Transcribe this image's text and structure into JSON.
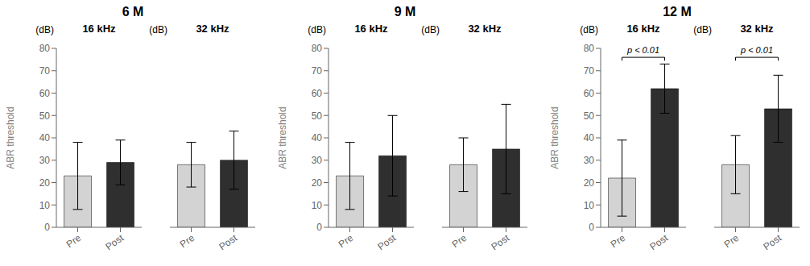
{
  "chart_data": [
    {
      "type": "bar",
      "title": "6 M",
      "subtitle": "16 kHz",
      "ylabel": "ABR threshold",
      "annotations": [
        {
          "text": "(dB)"
        }
      ],
      "categories": [
        "Pre",
        "Post"
      ],
      "values": [
        23,
        29
      ],
      "errors": [
        15,
        10
      ],
      "colors": [
        "#d3d3d3",
        "#2f2f2f"
      ],
      "ylim": [
        0,
        80
      ],
      "yticks": [
        0,
        10,
        20,
        30,
        40,
        50,
        60,
        70,
        80
      ]
    },
    {
      "type": "bar",
      "title": "6 M",
      "subtitle": "32 kHz",
      "annotations": [
        {
          "text": "(dB)"
        }
      ],
      "categories": [
        "Pre",
        "Post"
      ],
      "values": [
        28,
        30
      ],
      "errors": [
        10,
        13
      ],
      "colors": [
        "#d3d3d3",
        "#2f2f2f"
      ],
      "ylim": [
        0,
        80
      ],
      "yticks": [
        0,
        10,
        20,
        30,
        40,
        50,
        60,
        70,
        80
      ],
      "tick_labels": "x"
    },
    {
      "type": "bar",
      "title": "9 M",
      "subtitle": "16 kHz",
      "ylabel": "ABR threshold",
      "annotations": [
        {
          "text": "(dB)"
        }
      ],
      "categories": [
        "Pre",
        "Post"
      ],
      "values": [
        23,
        32
      ],
      "errors": [
        15,
        18
      ],
      "colors": [
        "#d3d3d3",
        "#2f2f2f"
      ],
      "ylim": [
        0,
        80
      ],
      "yticks": [
        0,
        10,
        20,
        30,
        40,
        50,
        60,
        70,
        80
      ]
    },
    {
      "type": "bar",
      "title": "9 M",
      "subtitle": "32 kHz",
      "annotations": [
        {
          "text": "(dB)"
        }
      ],
      "categories": [
        "Pre",
        "Post"
      ],
      "values": [
        28,
        35
      ],
      "errors": [
        12,
        20
      ],
      "colors": [
        "#d3d3d3",
        "#2f2f2f"
      ],
      "ylim": [
        0,
        80
      ],
      "yticks": [
        0,
        10,
        20,
        30,
        40,
        50,
        60,
        70,
        80
      ],
      "tick_labels": "x"
    },
    {
      "type": "bar",
      "title": "12 M",
      "subtitle": "16 kHz",
      "ylabel": "ABR threshold",
      "annotations": [
        {
          "text": "(dB)"
        },
        {
          "text": "p < 0.01",
          "x": [
            "Pre",
            "Post"
          ],
          "y": 76
        }
      ],
      "categories": [
        "Pre",
        "Post"
      ],
      "values": [
        22,
        62
      ],
      "errors": [
        17,
        11
      ],
      "colors": [
        "#d3d3d3",
        "#2f2f2f"
      ],
      "ylim": [
        0,
        80
      ],
      "yticks": [
        0,
        10,
        20,
        30,
        40,
        50,
        60,
        70,
        80
      ]
    },
    {
      "type": "bar",
      "title": "12 M",
      "subtitle": "32 kHz",
      "annotations": [
        {
          "text": "(dB)"
        },
        {
          "text": "p < 0.01",
          "x": [
            "Pre",
            "Post"
          ],
          "y": 76
        }
      ],
      "categories": [
        "Pre",
        "Post"
      ],
      "values": [
        28,
        53
      ],
      "errors": [
        13,
        15
      ],
      "colors": [
        "#d3d3d3",
        "#2f2f2f"
      ],
      "ylim": [
        0,
        80
      ],
      "yticks": [
        0,
        10,
        20,
        30,
        40,
        50,
        60,
        70,
        80
      ],
      "tick_labels": "x"
    }
  ]
}
